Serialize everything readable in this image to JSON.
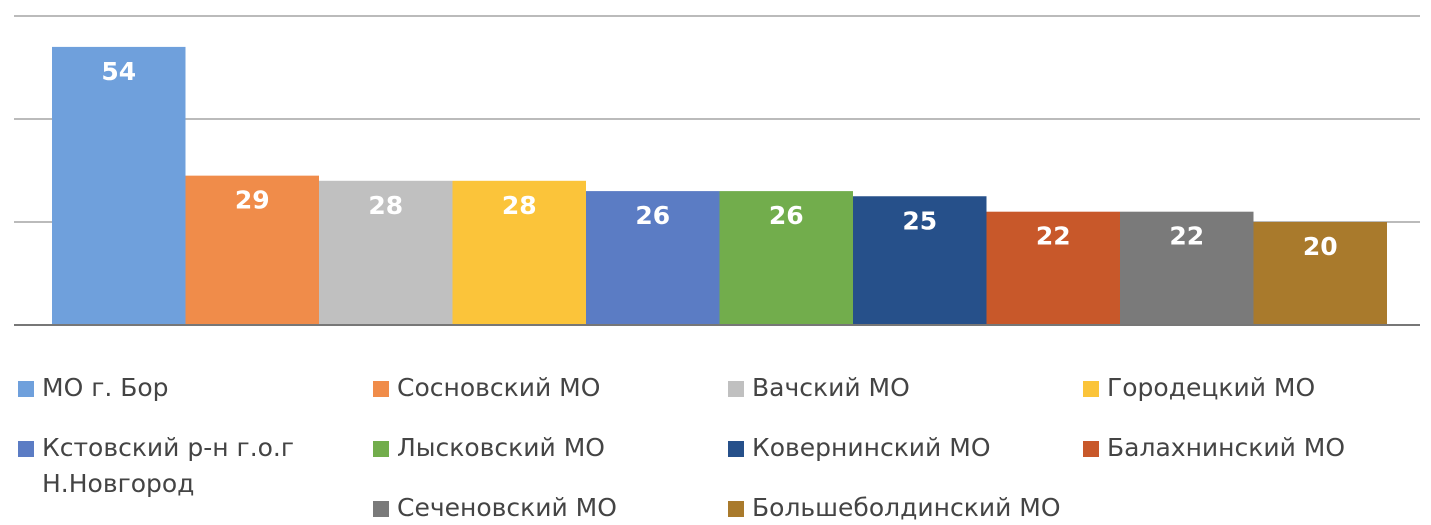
{
  "chart_data": {
    "type": "bar",
    "categories": [
      "МО г. Бор",
      "Сосновский МО",
      "Вачский МО",
      "Городецкий МО",
      "Кстовский р-н г.о.г Н.Новгород",
      "Лысковский МО",
      "Ковернинский МО",
      "Балахнинский МО",
      "Сеченовский МО",
      "Большеболдинский МО"
    ],
    "values": [
      54,
      29,
      28,
      28,
      26,
      26,
      25,
      22,
      22,
      20
    ],
    "colors": [
      "#6fa0dc",
      "#f08c4a",
      "#c0c0c0",
      "#fbc43a",
      "#5b7cc4",
      "#72ad4c",
      "#26508a",
      "#c8582a",
      "#7a7a7a",
      "#a97a2c"
    ],
    "ylim": [
      0,
      60
    ],
    "yticks": [
      0,
      20,
      40,
      60
    ],
    "grid": true,
    "legend": "bottom"
  }
}
